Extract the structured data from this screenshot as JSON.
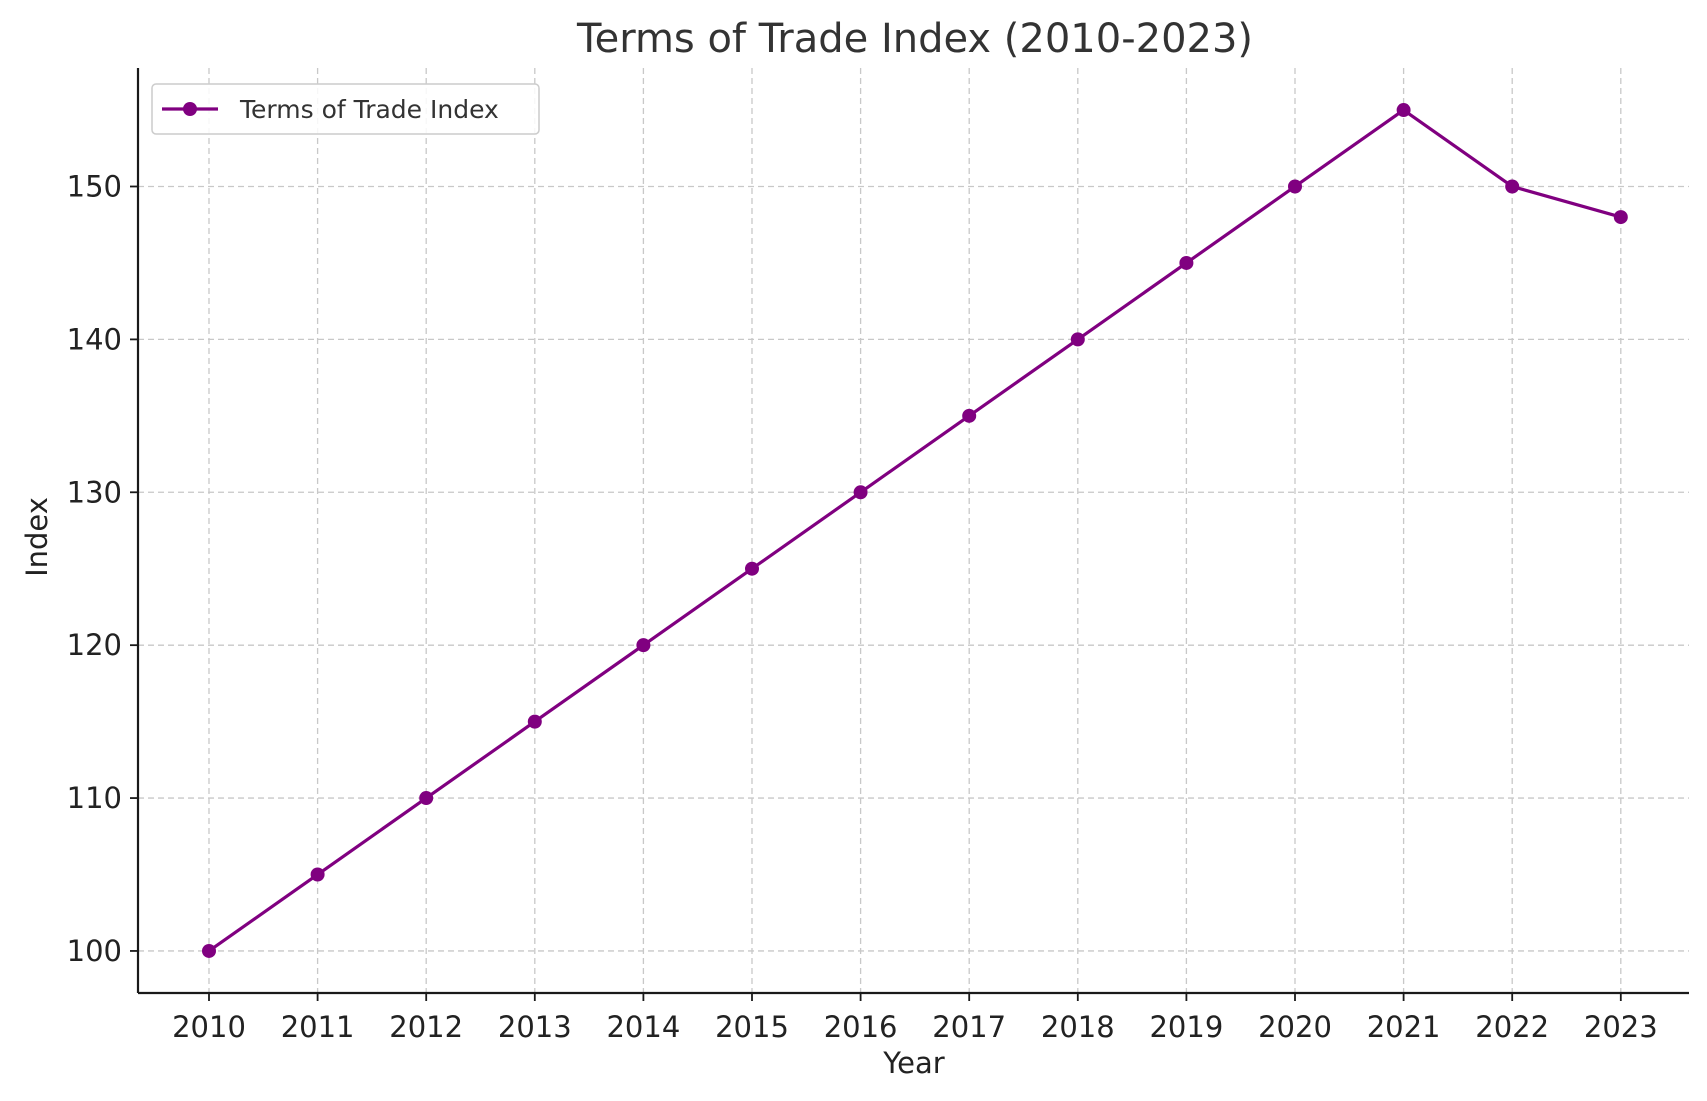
{
  "chart_data": {
    "type": "line",
    "title": "Terms of Trade Index (2010-2023)",
    "xlabel": "Year",
    "ylabel": "Index",
    "categories": [
      "2010",
      "2011",
      "2012",
      "2013",
      "2014",
      "2015",
      "2016",
      "2017",
      "2018",
      "2019",
      "2020",
      "2021",
      "2022",
      "2023"
    ],
    "series": [
      {
        "name": "Terms of Trade Index",
        "color": "#800080",
        "marker": "circle",
        "values": [
          100,
          105,
          110,
          115,
          120,
          125,
          130,
          135,
          140,
          145,
          150,
          155,
          150,
          148
        ]
      }
    ],
    "ylim": [
      97.25,
      157.75
    ],
    "yticks": [
      100,
      110,
      120,
      130,
      140,
      150
    ],
    "grid": true,
    "legend_position": "top-left"
  }
}
